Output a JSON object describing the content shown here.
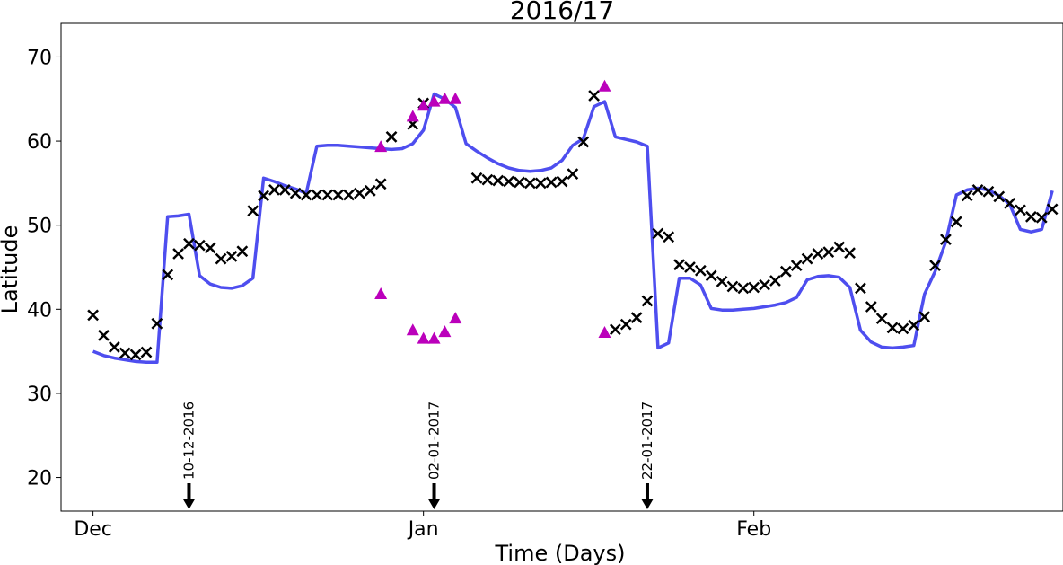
{
  "chart_data": {
    "type": "line",
    "title": "2016/17",
    "xlabel": "Time (Days)",
    "ylabel": "Latitude",
    "x_unit": "date",
    "xlim": [
      "2016-11-28",
      "2017-03-02"
    ],
    "ylim": [
      16,
      74
    ],
    "yticks": [
      20,
      30,
      40,
      50,
      60,
      70
    ],
    "xticks": [
      {
        "date": "2016-12-01",
        "label": "Dec"
      },
      {
        "date": "2017-01-01",
        "label": "Jan"
      },
      {
        "date": "2017-02-01",
        "label": "Feb"
      }
    ],
    "grid": false,
    "colors": {
      "line": "#4444ee",
      "cross": "#000000",
      "triangle": "#bb00bb",
      "arrow": "#000000"
    },
    "line_series": {
      "x": [
        "2016-12-01",
        "2016-12-02",
        "2016-12-03",
        "2016-12-04",
        "2016-12-05",
        "2016-12-06",
        "2016-12-07",
        "2016-12-08",
        "2016-12-09",
        "2016-12-10",
        "2016-12-11",
        "2016-12-12",
        "2016-12-13",
        "2016-12-14",
        "2016-12-15",
        "2016-12-16",
        "2016-12-17",
        "2016-12-18",
        "2016-12-19",
        "2016-12-20",
        "2016-12-21",
        "2016-12-22",
        "2016-12-23",
        "2016-12-24",
        "2016-12-25",
        "2016-12-26",
        "2016-12-27",
        "2016-12-28",
        "2016-12-29",
        "2016-12-30",
        "2016-12-31",
        "2017-01-01",
        "2017-01-02",
        "2017-01-03",
        "2017-01-04",
        "2017-01-05",
        "2017-01-06",
        "2017-01-07",
        "2017-01-08",
        "2017-01-09",
        "2017-01-10",
        "2017-01-11",
        "2017-01-12",
        "2017-01-13",
        "2017-01-14",
        "2017-01-15",
        "2017-01-16",
        "2017-01-17",
        "2017-01-18",
        "2017-01-19",
        "2017-01-20",
        "2017-01-21",
        "2017-01-22",
        "2017-01-23",
        "2017-01-24",
        "2017-01-25",
        "2017-01-26",
        "2017-01-27",
        "2017-01-28",
        "2017-01-29",
        "2017-01-30",
        "2017-01-31",
        "2017-02-01",
        "2017-02-02",
        "2017-02-03",
        "2017-02-04",
        "2017-02-05",
        "2017-02-06",
        "2017-02-07",
        "2017-02-08",
        "2017-02-09",
        "2017-02-10",
        "2017-02-11",
        "2017-02-12",
        "2017-02-13",
        "2017-02-14",
        "2017-02-15",
        "2017-02-16",
        "2017-02-17",
        "2017-02-18",
        "2017-02-19",
        "2017-02-20",
        "2017-02-21",
        "2017-02-22",
        "2017-02-23",
        "2017-02-24",
        "2017-02-25",
        "2017-02-26",
        "2017-02-27",
        "2017-02-28",
        "2017-03-01"
      ],
      "y": [
        35.0,
        34.5,
        34.2,
        34.0,
        33.8,
        33.7,
        33.7,
        51.0,
        51.1,
        51.3,
        44.0,
        43.0,
        42.6,
        42.5,
        42.8,
        43.7,
        55.6,
        55.2,
        54.7,
        54.3,
        53.8,
        59.4,
        59.5,
        59.5,
        59.4,
        59.3,
        59.2,
        59.1,
        59.0,
        59.1,
        59.7,
        61.3,
        65.6,
        65.0,
        64.0,
        59.7,
        58.8,
        58.0,
        57.3,
        56.8,
        56.5,
        56.4,
        56.5,
        56.8,
        57.7,
        59.5,
        60.3,
        64.1,
        64.7,
        60.5,
        60.2,
        59.9,
        59.4,
        35.4,
        36.0,
        43.7,
        43.7,
        42.9,
        40.1,
        39.9,
        39.9,
        40.0,
        40.1,
        40.3,
        40.5,
        40.8,
        41.4,
        43.5,
        43.9,
        44.0,
        43.8,
        42.6,
        37.5,
        36.1,
        35.5,
        35.4,
        35.5,
        35.7,
        41.8,
        44.5,
        48.0,
        53.6,
        54.2,
        54.4,
        54.2,
        53.5,
        52.5,
        49.5,
        49.2,
        49.5,
        54.1
      ]
    },
    "cross_series": {
      "x": [
        "2016-12-01",
        "2016-12-02",
        "2016-12-03",
        "2016-12-04",
        "2016-12-05",
        "2016-12-06",
        "2016-12-07",
        "2016-12-08",
        "2016-12-09",
        "2016-12-10",
        "2016-12-11",
        "2016-12-12",
        "2016-12-13",
        "2016-12-14",
        "2016-12-15",
        "2016-12-16",
        "2016-12-17",
        "2016-12-18",
        "2016-12-19",
        "2016-12-20",
        "2016-12-21",
        "2016-12-22",
        "2016-12-23",
        "2016-12-24",
        "2016-12-25",
        "2016-12-26",
        "2016-12-27",
        "2016-12-28",
        "2016-12-29",
        "2016-12-31",
        "2017-01-01",
        "2017-01-06",
        "2017-01-07",
        "2017-01-08",
        "2017-01-09",
        "2017-01-10",
        "2017-01-11",
        "2017-01-12",
        "2017-01-13",
        "2017-01-14",
        "2017-01-15",
        "2017-01-16",
        "2017-01-17",
        "2017-01-19",
        "2017-01-20",
        "2017-01-21",
        "2017-01-22",
        "2017-01-23",
        "2017-01-24",
        "2017-01-25",
        "2017-01-26",
        "2017-01-27",
        "2017-01-28",
        "2017-01-29",
        "2017-01-30",
        "2017-01-31",
        "2017-02-01",
        "2017-02-02",
        "2017-02-03",
        "2017-02-04",
        "2017-02-05",
        "2017-02-06",
        "2017-02-07",
        "2017-02-08",
        "2017-02-09",
        "2017-02-10",
        "2017-02-11",
        "2017-02-12",
        "2017-02-13",
        "2017-02-14",
        "2017-02-15",
        "2017-02-16",
        "2017-02-17",
        "2017-02-18",
        "2017-02-19",
        "2017-02-20",
        "2017-02-21",
        "2017-02-22",
        "2017-02-23",
        "2017-02-24",
        "2017-02-25",
        "2017-02-26",
        "2017-02-27",
        "2017-02-28",
        "2017-03-01"
      ],
      "y": [
        39.3,
        36.9,
        35.5,
        34.8,
        34.6,
        34.9,
        38.3,
        44.1,
        46.6,
        47.8,
        47.6,
        47.3,
        46.0,
        46.3,
        46.9,
        51.7,
        53.5,
        54.2,
        54.2,
        53.8,
        53.6,
        53.6,
        53.6,
        53.6,
        53.6,
        53.8,
        54.1,
        54.9,
        60.5,
        62.0,
        64.5,
        55.6,
        55.4,
        55.3,
        55.2,
        55.1,
        55.0,
        55.0,
        55.1,
        55.2,
        56.1,
        59.9,
        65.4,
        37.6,
        38.2,
        39.0,
        41.0,
        49.0,
        48.6,
        45.3,
        45.0,
        44.6,
        44.0,
        43.3,
        42.7,
        42.5,
        42.6,
        42.9,
        43.4,
        44.5,
        45.2,
        46.0,
        46.6,
        46.8,
        47.4,
        46.7,
        42.5,
        40.3,
        38.9,
        37.8,
        37.7,
        38.1,
        39.1,
        45.2,
        48.3,
        50.4,
        53.5,
        54.2,
        54.0,
        53.4,
        52.6,
        51.8,
        51.0,
        50.9,
        51.9
      ]
    },
    "triangle_series": {
      "x": [
        "2016-12-28",
        "2016-12-28",
        "2016-12-31",
        "2016-12-31",
        "2017-01-01",
        "2017-01-01",
        "2017-01-02",
        "2017-01-02",
        "2017-01-03",
        "2017-01-03",
        "2017-01-04",
        "2017-01-04",
        "2017-01-18",
        "2017-01-18"
      ],
      "y": [
        59.3,
        41.8,
        62.9,
        37.5,
        64.2,
        36.5,
        64.7,
        36.5,
        65.0,
        37.3,
        65.0,
        38.9,
        66.5,
        37.2
      ]
    },
    "annotations": [
      {
        "date": "2016-12-10",
        "text": "10-12-2016"
      },
      {
        "date": "2017-01-02",
        "text": "02-01-2017"
      },
      {
        "date": "2017-01-22",
        "text": "22-01-2017"
      }
    ]
  }
}
